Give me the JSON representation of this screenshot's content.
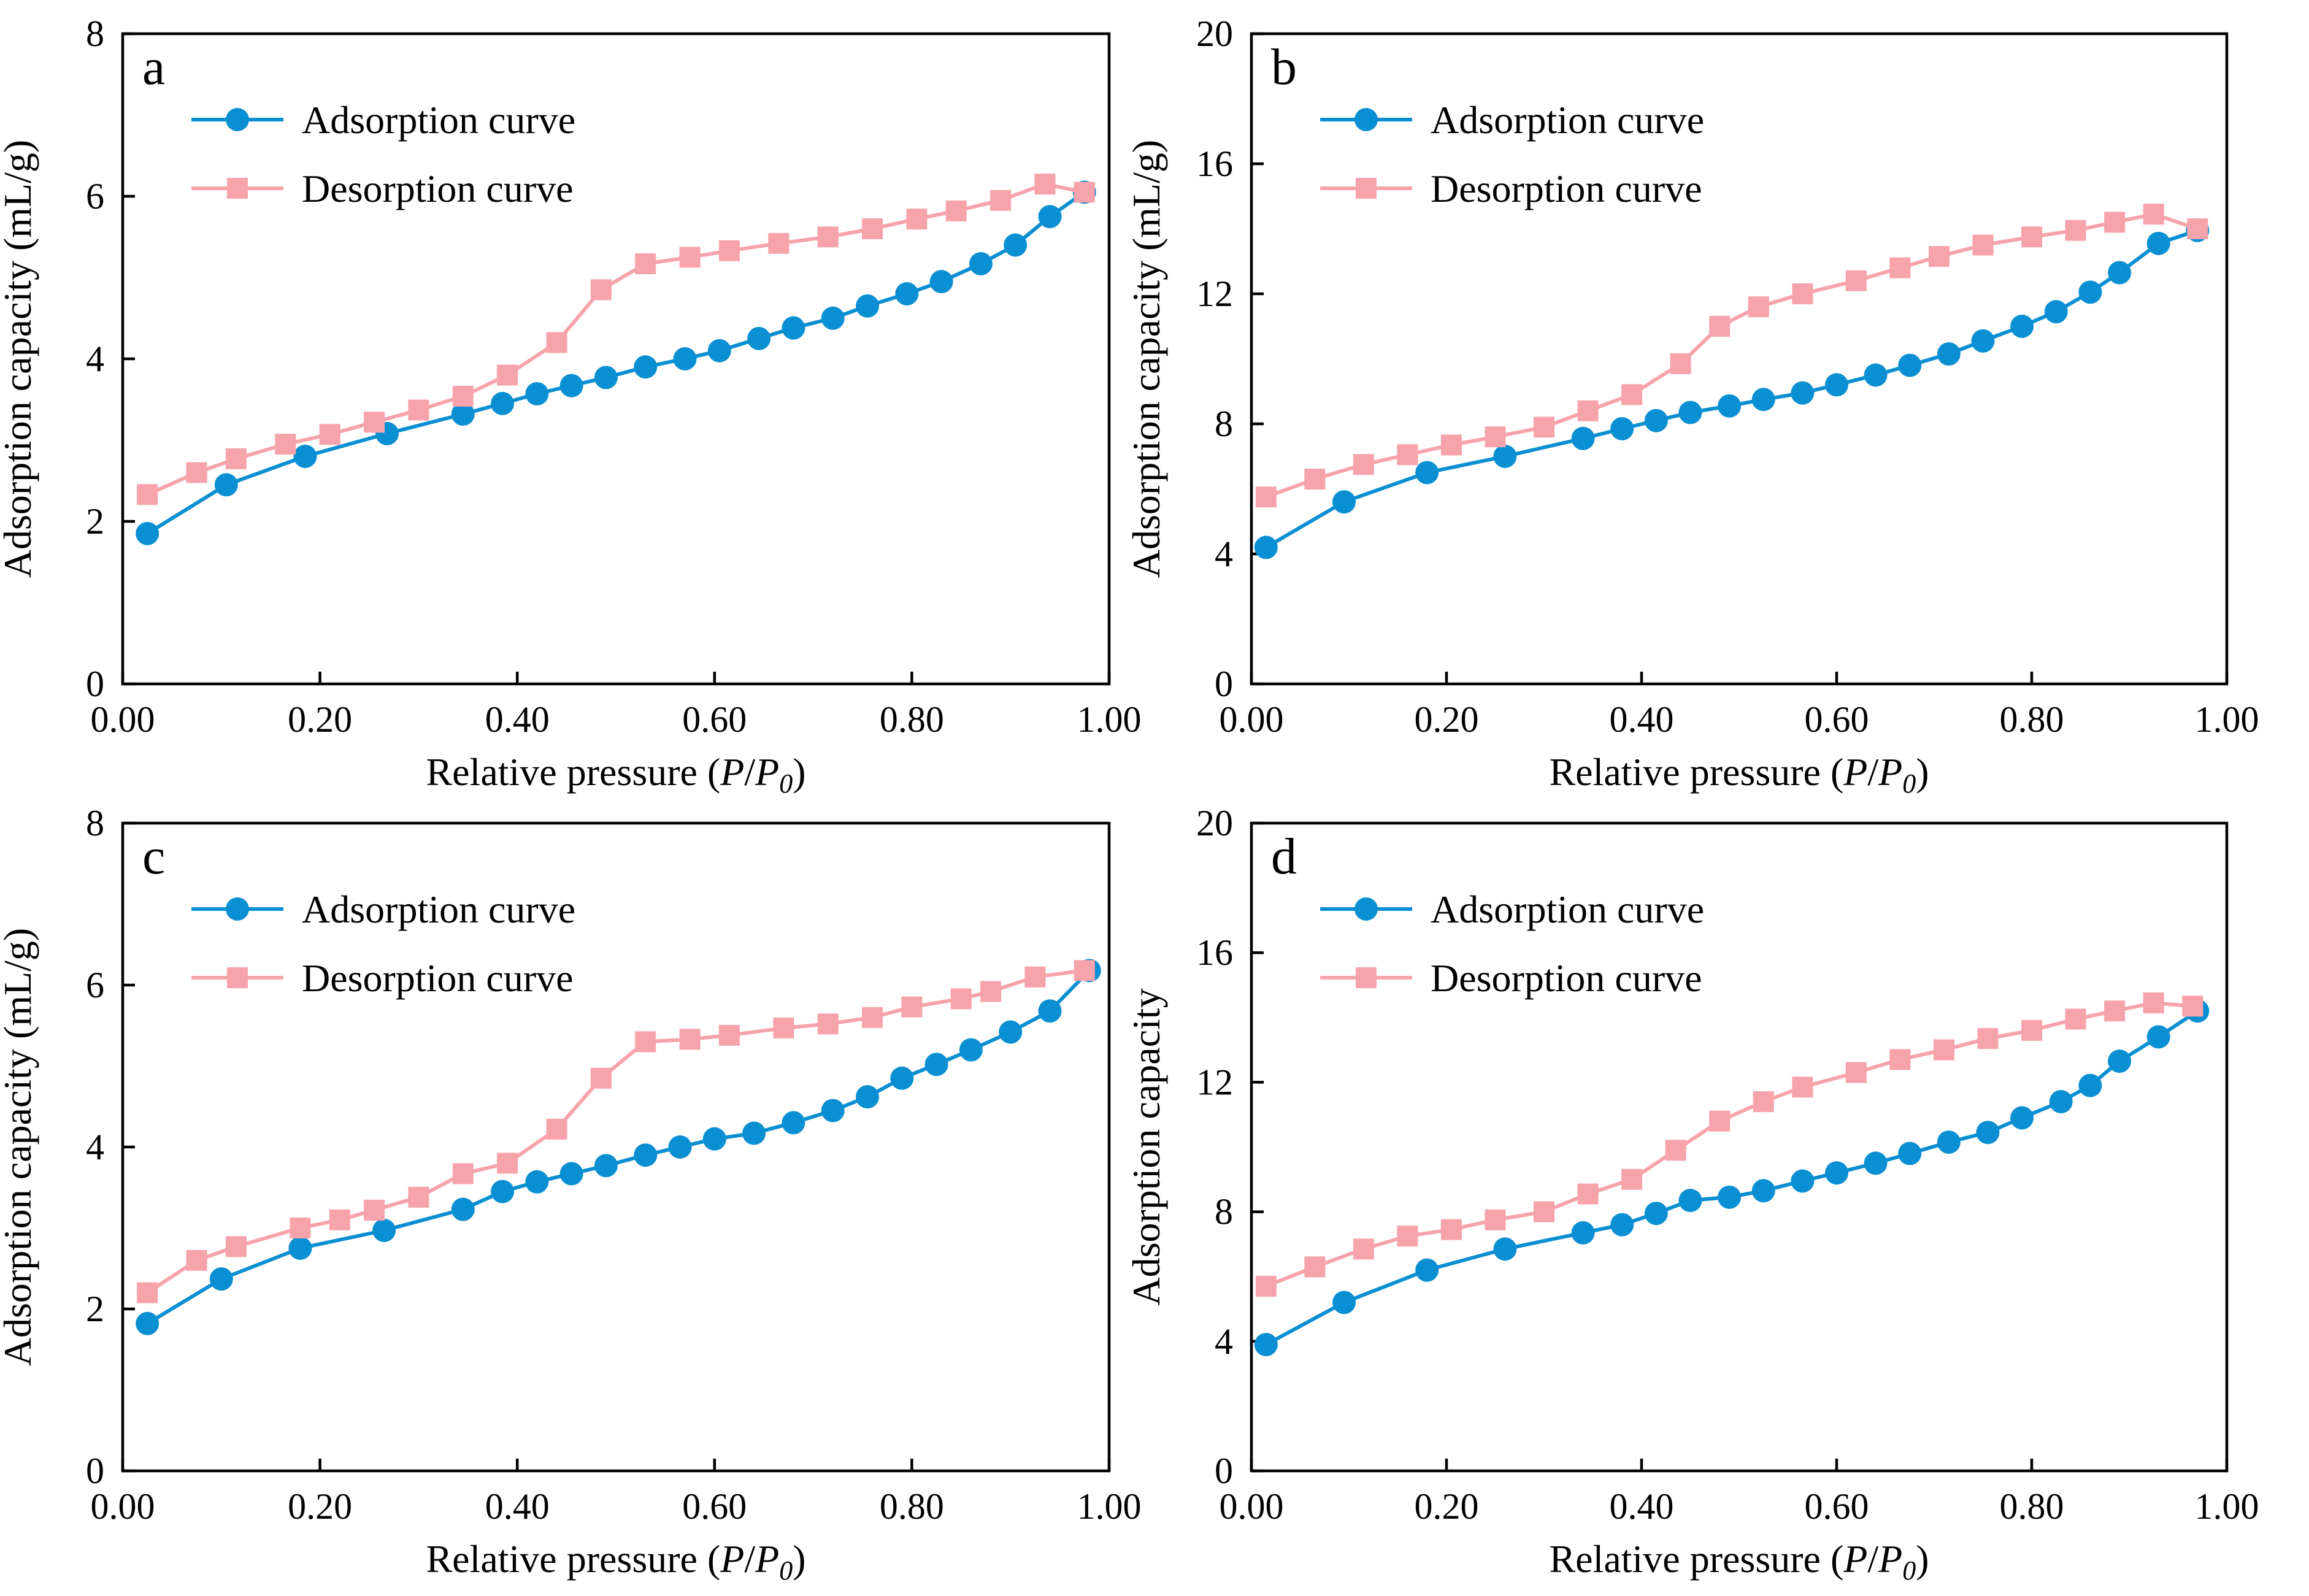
{
  "colors": {
    "adsorption": "#0a8fd2",
    "desorption": "#f7a3ab",
    "axis": "#000000"
  },
  "chart_data": [
    {
      "type": "line",
      "panel_label": "a",
      "xlabel": "Relative pressure (P/P0)",
      "xlabel_prefix": "Relative pressure (",
      "xlabel_P": "P",
      "xlabel_slash": "/",
      "xlabel_P0_main": "P",
      "xlabel_P0_sub": "0",
      "xlabel_suffix": ")",
      "ylabel": "Adsorption capacity (mL/g)",
      "xlim": [
        0,
        1
      ],
      "ylim": [
        0,
        8
      ],
      "xticks": [
        0,
        0.2,
        0.4,
        0.6,
        0.8,
        1.0
      ],
      "xtick_labels": [
        "0.00",
        "0.20",
        "0.40",
        "0.60",
        "0.80",
        "1.00"
      ],
      "yticks": [
        0,
        2,
        4,
        6,
        8
      ],
      "ytick_labels": [
        "0",
        "2",
        "4",
        "6",
        "8"
      ],
      "legend": [
        "Adsorption curve",
        "Desorption curve"
      ],
      "legend_position": "top-left",
      "series": [
        {
          "name": "Adsorption curve",
          "marker": "circle",
          "x": [
            0.025,
            0.105,
            0.185,
            0.268,
            0.345,
            0.385,
            0.42,
            0.455,
            0.49,
            0.53,
            0.57,
            0.605,
            0.645,
            0.68,
            0.72,
            0.755,
            0.795,
            0.83,
            0.87,
            0.905,
            0.94,
            0.975
          ],
          "y": [
            1.85,
            2.45,
            2.8,
            3.08,
            3.32,
            3.45,
            3.57,
            3.67,
            3.77,
            3.9,
            4.0,
            4.1,
            4.25,
            4.38,
            4.5,
            4.65,
            4.8,
            4.95,
            5.17,
            5.4,
            5.75,
            6.05
          ]
        },
        {
          "name": "Desorption curve",
          "marker": "square",
          "x": [
            0.025,
            0.075,
            0.115,
            0.165,
            0.21,
            0.255,
            0.3,
            0.345,
            0.39,
            0.44,
            0.485,
            0.53,
            0.575,
            0.615,
            0.665,
            0.715,
            0.76,
            0.805,
            0.845,
            0.89,
            0.935,
            0.975
          ],
          "y": [
            2.33,
            2.6,
            2.77,
            2.95,
            3.07,
            3.22,
            3.37,
            3.54,
            3.8,
            4.2,
            4.85,
            5.17,
            5.25,
            5.33,
            5.42,
            5.5,
            5.6,
            5.72,
            5.82,
            5.95,
            6.15,
            6.05
          ]
        }
      ]
    },
    {
      "type": "line",
      "panel_label": "b",
      "xlabel": "Relative pressure (P/P0)",
      "xlabel_prefix": "Relative pressure (",
      "xlabel_P": "P",
      "xlabel_slash": "/",
      "xlabel_P0_main": "P",
      "xlabel_P0_sub": "0",
      "xlabel_suffix": ")",
      "ylabel": "Adsorption capacity (mL/g)",
      "xlim": [
        0,
        1
      ],
      "ylim": [
        0,
        20
      ],
      "xticks": [
        0,
        0.2,
        0.4,
        0.6,
        0.8,
        1.0
      ],
      "xtick_labels": [
        "0.00",
        "0.20",
        "0.40",
        "0.60",
        "0.80",
        "1.00"
      ],
      "yticks": [
        0,
        4,
        8,
        12,
        16,
        20
      ],
      "ytick_labels": [
        "0",
        "4",
        "8",
        "12",
        "16",
        "20"
      ],
      "legend": [
        "Adsorption curve",
        "Desorption curve"
      ],
      "legend_position": "top-left",
      "series": [
        {
          "name": "Adsorption curve",
          "marker": "circle",
          "x": [
            0.015,
            0.095,
            0.18,
            0.26,
            0.34,
            0.38,
            0.415,
            0.45,
            0.49,
            0.525,
            0.565,
            0.6,
            0.64,
            0.675,
            0.715,
            0.75,
            0.79,
            0.825,
            0.86,
            0.89,
            0.93,
            0.97
          ],
          "y": [
            4.2,
            5.6,
            6.5,
            7.0,
            7.55,
            7.85,
            8.1,
            8.35,
            8.55,
            8.75,
            8.95,
            9.2,
            9.5,
            9.8,
            10.15,
            10.55,
            11.0,
            11.45,
            12.05,
            12.65,
            13.55,
            13.95
          ]
        },
        {
          "name": "Desorption curve",
          "marker": "square",
          "x": [
            0.015,
            0.065,
            0.115,
            0.16,
            0.205,
            0.25,
            0.3,
            0.345,
            0.39,
            0.44,
            0.48,
            0.52,
            0.565,
            0.62,
            0.665,
            0.705,
            0.75,
            0.8,
            0.845,
            0.885,
            0.925,
            0.97
          ],
          "y": [
            5.75,
            6.3,
            6.75,
            7.05,
            7.35,
            7.6,
            7.9,
            8.4,
            8.9,
            9.85,
            11.0,
            11.6,
            12.0,
            12.4,
            12.8,
            13.15,
            13.5,
            13.75,
            13.95,
            14.2,
            14.45,
            14.0
          ]
        }
      ]
    },
    {
      "type": "line",
      "panel_label": "c",
      "xlabel": "Relative pressure (P/P0)",
      "xlabel_prefix": "Relative pressure (",
      "xlabel_P": "P",
      "xlabel_slash": "/",
      "xlabel_P0_main": "P",
      "xlabel_P0_sub": "0",
      "xlabel_suffix": ")",
      "ylabel": "Adsorption capacity (mL/g)",
      "xlim": [
        0,
        1
      ],
      "ylim": [
        0,
        8
      ],
      "xticks": [
        0,
        0.2,
        0.4,
        0.6,
        0.8,
        1.0
      ],
      "xtick_labels": [
        "0.00",
        "0.20",
        "0.40",
        "0.60",
        "0.80",
        "1.00"
      ],
      "yticks": [
        0,
        2,
        4,
        6,
        8
      ],
      "ytick_labels": [
        "0",
        "2",
        "4",
        "6",
        "8"
      ],
      "legend": [
        "Adsorption curve",
        "Desorption curve"
      ],
      "legend_position": "top-left",
      "series": [
        {
          "name": "Adsorption curve",
          "marker": "circle",
          "x": [
            0.025,
            0.1,
            0.18,
            0.265,
            0.345,
            0.385,
            0.42,
            0.455,
            0.49,
            0.53,
            0.565,
            0.6,
            0.64,
            0.68,
            0.72,
            0.755,
            0.79,
            0.825,
            0.86,
            0.9,
            0.94,
            0.98
          ],
          "y": [
            1.82,
            2.37,
            2.75,
            2.97,
            3.23,
            3.45,
            3.57,
            3.67,
            3.77,
            3.9,
            4.0,
            4.1,
            4.17,
            4.3,
            4.45,
            4.62,
            4.85,
            5.02,
            5.2,
            5.42,
            5.68,
            6.18
          ]
        },
        {
          "name": "Desorption curve",
          "marker": "square",
          "x": [
            0.025,
            0.075,
            0.115,
            0.18,
            0.22,
            0.255,
            0.3,
            0.345,
            0.39,
            0.44,
            0.485,
            0.53,
            0.575,
            0.615,
            0.67,
            0.715,
            0.76,
            0.8,
            0.85,
            0.88,
            0.925,
            0.975
          ],
          "y": [
            2.2,
            2.6,
            2.77,
            3.0,
            3.1,
            3.22,
            3.38,
            3.67,
            3.8,
            4.22,
            4.85,
            5.3,
            5.33,
            5.38,
            5.47,
            5.52,
            5.6,
            5.73,
            5.83,
            5.92,
            6.1,
            6.18
          ]
        }
      ]
    },
    {
      "type": "line",
      "panel_label": "d",
      "xlabel": "Relative pressure (P/P0)",
      "xlabel_prefix": "Relative pressure (",
      "xlabel_P": "P",
      "xlabel_slash": "/",
      "xlabel_P0_main": "P",
      "xlabel_P0_sub": "0",
      "xlabel_suffix": ")",
      "ylabel": "Adsorption capacity",
      "xlim": [
        0,
        1
      ],
      "ylim": [
        0,
        20
      ],
      "xticks": [
        0,
        0.2,
        0.4,
        0.6,
        0.8,
        1.0
      ],
      "xtick_labels": [
        "0.00",
        "0.20",
        "0.40",
        "0.60",
        "0.80",
        "1.00"
      ],
      "yticks": [
        0,
        4,
        8,
        12,
        16,
        20
      ],
      "ytick_labels": [
        "0",
        "4",
        "8",
        "12",
        "16",
        "20"
      ],
      "legend": [
        "Adsorption curve",
        "Desorption curve"
      ],
      "legend_position": "top-left",
      "series": [
        {
          "name": "Adsorption curve",
          "marker": "circle",
          "x": [
            0.015,
            0.095,
            0.18,
            0.26,
            0.34,
            0.38,
            0.415,
            0.45,
            0.49,
            0.525,
            0.565,
            0.6,
            0.64,
            0.675,
            0.715,
            0.755,
            0.79,
            0.83,
            0.86,
            0.89,
            0.93,
            0.97
          ],
          "y": [
            3.9,
            5.2,
            6.2,
            6.85,
            7.35,
            7.6,
            7.95,
            8.35,
            8.45,
            8.65,
            8.95,
            9.2,
            9.5,
            9.8,
            10.15,
            10.45,
            10.9,
            11.4,
            11.9,
            12.65,
            13.4,
            14.2
          ]
        },
        {
          "name": "Desorption curve",
          "marker": "square",
          "x": [
            0.015,
            0.065,
            0.115,
            0.16,
            0.205,
            0.25,
            0.3,
            0.345,
            0.39,
            0.435,
            0.48,
            0.525,
            0.565,
            0.62,
            0.665,
            0.71,
            0.755,
            0.8,
            0.845,
            0.885,
            0.925,
            0.965
          ],
          "y": [
            5.7,
            6.3,
            6.85,
            7.25,
            7.45,
            7.75,
            8.0,
            8.55,
            9.0,
            9.9,
            10.8,
            11.4,
            11.85,
            12.3,
            12.7,
            13.0,
            13.35,
            13.6,
            13.95,
            14.2,
            14.45,
            14.35
          ]
        }
      ]
    }
  ]
}
